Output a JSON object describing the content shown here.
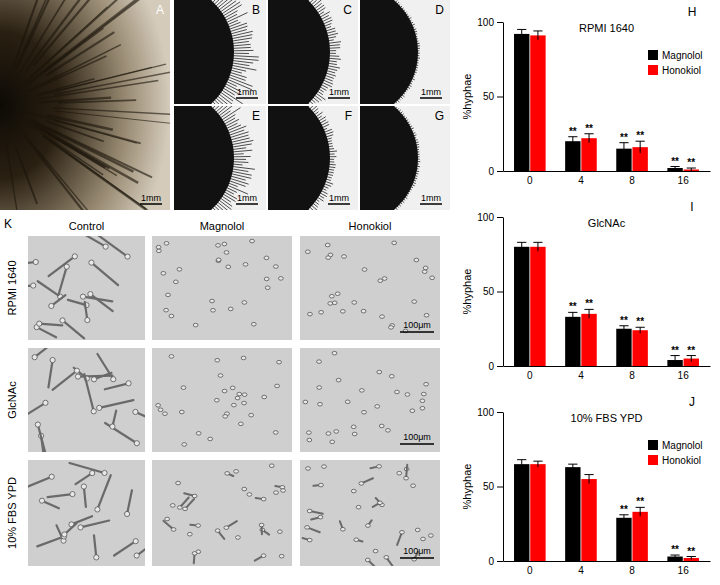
{
  "chart_data": [
    {
      "type": "bar",
      "panel": "H",
      "title": "RPMI 1640",
      "ylabel": "%hyphae",
      "categories": [
        "0",
        "4",
        "8",
        "16"
      ],
      "series": [
        {
          "name": "Magnolol",
          "color": "#000000",
          "values": [
            92,
            20,
            15,
            2
          ],
          "errors": [
            3,
            3,
            4,
            1
          ],
          "significance": [
            null,
            "**",
            "**",
            "**"
          ]
        },
        {
          "name": "Honokiol",
          "color": "#ff0000",
          "values": [
            91,
            22,
            16,
            1
          ],
          "errors": [
            3,
            3,
            4,
            1
          ],
          "significance": [
            null,
            "**",
            "**",
            "**"
          ]
        }
      ],
      "ylim": [
        0,
        100
      ],
      "yticks": [
        0,
        50,
        100
      ],
      "legend": "upper right"
    },
    {
      "type": "bar",
      "panel": "I",
      "title": "GlcNAc",
      "ylabel": "%hyphae",
      "categories": [
        "0",
        "4",
        "8",
        "16"
      ],
      "series": [
        {
          "name": "Magnolol",
          "color": "#000000",
          "values": [
            80,
            33,
            25,
            4
          ],
          "errors": [
            3,
            3,
            2,
            3
          ],
          "significance": [
            null,
            "**",
            "**",
            "**"
          ]
        },
        {
          "name": "Honokiol",
          "color": "#ff0000",
          "values": [
            80,
            35,
            24,
            5
          ],
          "errors": [
            3,
            3,
            2,
            2
          ],
          "significance": [
            null,
            "**",
            "**",
            "**"
          ]
        }
      ],
      "ylim": [
        0,
        100
      ],
      "yticks": [
        0,
        50,
        100
      ]
    },
    {
      "type": "bar",
      "panel": "J",
      "title": "10% FBS YPD",
      "ylabel": "%hyphae",
      "categories": [
        "0",
        "4",
        "8",
        "16"
      ],
      "series": [
        {
          "name": "Magnolol",
          "color": "#000000",
          "values": [
            65,
            63,
            29,
            3
          ],
          "errors": [
            3,
            2,
            2,
            1
          ],
          "significance": [
            null,
            null,
            "**",
            "**"
          ]
        },
        {
          "name": "Honokiol",
          "color": "#ff0000",
          "values": [
            65,
            55,
            33,
            2
          ],
          "errors": [
            2,
            3,
            3,
            1
          ],
          "significance": [
            null,
            null,
            "**",
            "**"
          ]
        }
      ],
      "ylim": [
        0,
        100
      ],
      "yticks": [
        0,
        50,
        100
      ],
      "legend": "upper right"
    }
  ],
  "images": {
    "photos": [
      {
        "letter": "A",
        "scale": "1mm"
      },
      {
        "letter": "B",
        "scale": "1mm"
      },
      {
        "letter": "C",
        "scale": "1mm"
      },
      {
        "letter": "D",
        "scale": "1mm"
      },
      {
        "letter": "E",
        "scale": "1mm"
      },
      {
        "letter": "F",
        "scale": "1mm"
      },
      {
        "letter": "G",
        "scale": "1mm"
      }
    ],
    "grid": {
      "letter": "K",
      "columns": [
        "Control",
        "Magnolol",
        "Honokiol"
      ],
      "rows": [
        {
          "label": "RPMI 1640",
          "scale": "100μm"
        },
        {
          "label": "GlcNAc",
          "scale": "100μm"
        },
        {
          "label": "10% FBS YPD",
          "scale": "100μm"
        }
      ]
    }
  }
}
